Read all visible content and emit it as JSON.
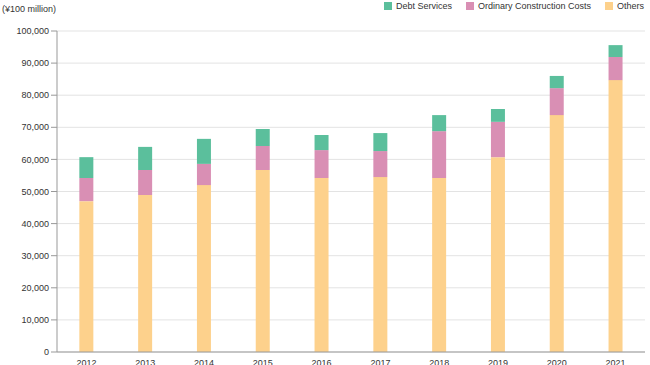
{
  "chart_data": {
    "type": "bar",
    "stacked": true,
    "ylabel": "(¥100 million)",
    "categories": [
      "2012",
      "2013",
      "2014",
      "2015",
      "2016",
      "2017",
      "2018",
      "2019",
      "2020",
      "2021"
    ],
    "series": [
      {
        "name": "Debt Services",
        "color": "#5bbf9c",
        "values": [
          6500,
          7200,
          7800,
          5300,
          4700,
          5600,
          5000,
          4000,
          3800,
          3700
        ]
      },
      {
        "name": "Ordinary Construction Costs",
        "color": "#d98fb4",
        "values": [
          7200,
          7800,
          6600,
          7500,
          8700,
          8100,
          14600,
          11000,
          8400,
          7200
        ]
      },
      {
        "name": "Others",
        "color": "#fdd18c",
        "values": [
          47000,
          48900,
          52000,
          56700,
          54200,
          54500,
          54200,
          60700,
          73800,
          84700
        ]
      }
    ],
    "ylim": [
      0,
      100000
    ],
    "yticks": [
      0,
      {
        "value": 10000,
        "label": "10,000"
      },
      {
        "value": 20000,
        "label": "20,000"
      },
      {
        "value": 30000,
        "label": "30,000"
      },
      {
        "value": 40000,
        "label": "40,000"
      },
      {
        "value": 50000,
        "label": "50,000"
      },
      {
        "value": 60000,
        "label": "60,000"
      },
      {
        "value": 70000,
        "label": "70,000"
      },
      {
        "value": 80000,
        "label": "80,000"
      },
      {
        "value": 90000,
        "label": "90,000"
      },
      {
        "value": 100000,
        "label": "100,000"
      }
    ],
    "grid": true,
    "legend": "top-right"
  }
}
